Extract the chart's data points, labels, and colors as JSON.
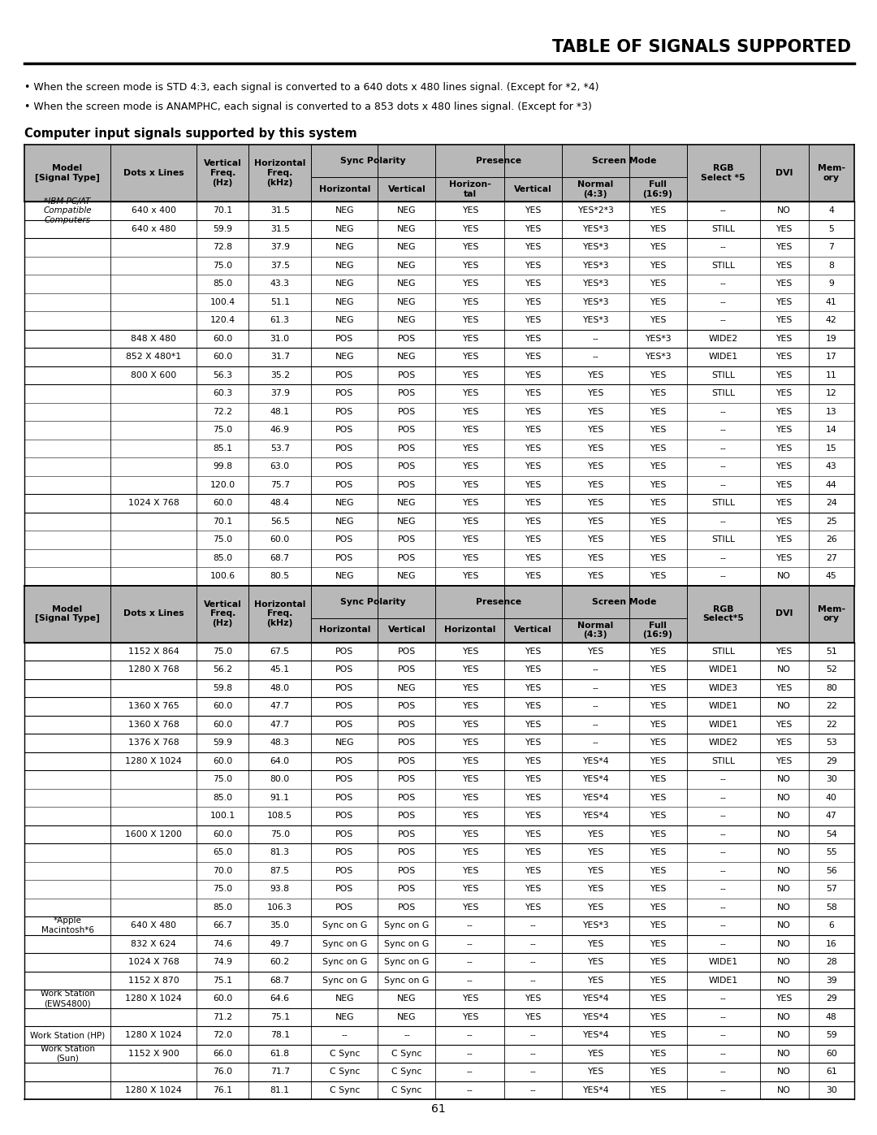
{
  "title": "TABLE OF SIGNALS SUPPORTED",
  "bullet1": "• When the screen mode is STD 4:3, each signal is converted to a 640 dots x 480 lines signal. (Except for *2, *4)",
  "bullet2": "• When the screen mode is ANAMPHC, each signal is converted to a 853 dots x 480 lines signal. (Except for *3)",
  "subtitle": "Computer input signals supported by this system",
  "header_bg": "#b8b8b8",
  "data_section1": [
    [
      "*IBM PC/AT\nCompatible\nComputers",
      "640 x 400",
      "70.1",
      "31.5",
      "NEG",
      "NEG",
      "YES",
      "YES",
      "YES*2*3",
      "YES",
      "--",
      "NO",
      "4"
    ],
    [
      "",
      "640 x 480",
      "59.9",
      "31.5",
      "NEG",
      "NEG",
      "YES",
      "YES",
      "YES*3",
      "YES",
      "STILL",
      "YES",
      "5"
    ],
    [
      "",
      "",
      "72.8",
      "37.9",
      "NEG",
      "NEG",
      "YES",
      "YES",
      "YES*3",
      "YES",
      "--",
      "YES",
      "7"
    ],
    [
      "",
      "",
      "75.0",
      "37.5",
      "NEG",
      "NEG",
      "YES",
      "YES",
      "YES*3",
      "YES",
      "STILL",
      "YES",
      "8"
    ],
    [
      "",
      "",
      "85.0",
      "43.3",
      "NEG",
      "NEG",
      "YES",
      "YES",
      "YES*3",
      "YES",
      "--",
      "YES",
      "9"
    ],
    [
      "",
      "",
      "100.4",
      "51.1",
      "NEG",
      "NEG",
      "YES",
      "YES",
      "YES*3",
      "YES",
      "--",
      "YES",
      "41"
    ],
    [
      "",
      "",
      "120.4",
      "61.3",
      "NEG",
      "NEG",
      "YES",
      "YES",
      "YES*3",
      "YES",
      "--",
      "YES",
      "42"
    ],
    [
      "",
      "848 X 480",
      "60.0",
      "31.0",
      "POS",
      "POS",
      "YES",
      "YES",
      "--",
      "YES*3",
      "WIDE2",
      "YES",
      "19"
    ],
    [
      "",
      "852 X 480*1",
      "60.0",
      "31.7",
      "NEG",
      "NEG",
      "YES",
      "YES",
      "--",
      "YES*3",
      "WIDE1",
      "YES",
      "17"
    ],
    [
      "",
      "800 X 600",
      "56.3",
      "35.2",
      "POS",
      "POS",
      "YES",
      "YES",
      "YES",
      "YES",
      "STILL",
      "YES",
      "11"
    ],
    [
      "",
      "",
      "60.3",
      "37.9",
      "POS",
      "POS",
      "YES",
      "YES",
      "YES",
      "YES",
      "STILL",
      "YES",
      "12"
    ],
    [
      "",
      "",
      "72.2",
      "48.1",
      "POS",
      "POS",
      "YES",
      "YES",
      "YES",
      "YES",
      "--",
      "YES",
      "13"
    ],
    [
      "",
      "",
      "75.0",
      "46.9",
      "POS",
      "POS",
      "YES",
      "YES",
      "YES",
      "YES",
      "--",
      "YES",
      "14"
    ],
    [
      "",
      "",
      "85.1",
      "53.7",
      "POS",
      "POS",
      "YES",
      "YES",
      "YES",
      "YES",
      "--",
      "YES",
      "15"
    ],
    [
      "",
      "",
      "99.8",
      "63.0",
      "POS",
      "POS",
      "YES",
      "YES",
      "YES",
      "YES",
      "--",
      "YES",
      "43"
    ],
    [
      "",
      "",
      "120.0",
      "75.7",
      "POS",
      "POS",
      "YES",
      "YES",
      "YES",
      "YES",
      "--",
      "YES",
      "44"
    ],
    [
      "",
      "1024 X 768",
      "60.0",
      "48.4",
      "NEG",
      "NEG",
      "YES",
      "YES",
      "YES",
      "YES",
      "STILL",
      "YES",
      "24"
    ],
    [
      "",
      "",
      "70.1",
      "56.5",
      "NEG",
      "NEG",
      "YES",
      "YES",
      "YES",
      "YES",
      "--",
      "YES",
      "25"
    ],
    [
      "",
      "",
      "75.0",
      "60.0",
      "POS",
      "POS",
      "YES",
      "YES",
      "YES",
      "YES",
      "STILL",
      "YES",
      "26"
    ],
    [
      "",
      "",
      "85.0",
      "68.7",
      "POS",
      "POS",
      "YES",
      "YES",
      "YES",
      "YES",
      "--",
      "YES",
      "27"
    ],
    [
      "",
      "",
      "100.6",
      "80.5",
      "NEG",
      "NEG",
      "YES",
      "YES",
      "YES",
      "YES",
      "--",
      "NO",
      "45"
    ]
  ],
  "data_section2": [
    [
      "",
      "1152 X 864",
      "75.0",
      "67.5",
      "POS",
      "POS",
      "YES",
      "YES",
      "YES",
      "YES",
      "STILL",
      "YES",
      "51"
    ],
    [
      "",
      "1280 X 768",
      "56.2",
      "45.1",
      "POS",
      "POS",
      "YES",
      "YES",
      "--",
      "YES",
      "WIDE1",
      "NO",
      "52"
    ],
    [
      "",
      "",
      "59.8",
      "48.0",
      "POS",
      "NEG",
      "YES",
      "YES",
      "--",
      "YES",
      "WIDE3",
      "YES",
      "80"
    ],
    [
      "",
      "1360 X 765",
      "60.0",
      "47.7",
      "POS",
      "POS",
      "YES",
      "YES",
      "--",
      "YES",
      "WIDE1",
      "NO",
      "22"
    ],
    [
      "",
      "1360 X 768",
      "60.0",
      "47.7",
      "POS",
      "POS",
      "YES",
      "YES",
      "--",
      "YES",
      "WIDE1",
      "YES",
      "22"
    ],
    [
      "",
      "1376 X 768",
      "59.9",
      "48.3",
      "NEG",
      "POS",
      "YES",
      "YES",
      "--",
      "YES",
      "WIDE2",
      "YES",
      "53"
    ],
    [
      "",
      "1280 X 1024",
      "60.0",
      "64.0",
      "POS",
      "POS",
      "YES",
      "YES",
      "YES*4",
      "YES",
      "STILL",
      "YES",
      "29"
    ],
    [
      "",
      "",
      "75.0",
      "80.0",
      "POS",
      "POS",
      "YES",
      "YES",
      "YES*4",
      "YES",
      "--",
      "NO",
      "30"
    ],
    [
      "",
      "",
      "85.0",
      "91.1",
      "POS",
      "POS",
      "YES",
      "YES",
      "YES*4",
      "YES",
      "--",
      "NO",
      "40"
    ],
    [
      "",
      "",
      "100.1",
      "108.5",
      "POS",
      "POS",
      "YES",
      "YES",
      "YES*4",
      "YES",
      "--",
      "NO",
      "47"
    ],
    [
      "",
      "1600 X 1200",
      "60.0",
      "75.0",
      "POS",
      "POS",
      "YES",
      "YES",
      "YES",
      "YES",
      "--",
      "NO",
      "54"
    ],
    [
      "",
      "",
      "65.0",
      "81.3",
      "POS",
      "POS",
      "YES",
      "YES",
      "YES",
      "YES",
      "--",
      "NO",
      "55"
    ],
    [
      "",
      "",
      "70.0",
      "87.5",
      "POS",
      "POS",
      "YES",
      "YES",
      "YES",
      "YES",
      "--",
      "NO",
      "56"
    ],
    [
      "",
      "",
      "75.0",
      "93.8",
      "POS",
      "POS",
      "YES",
      "YES",
      "YES",
      "YES",
      "--",
      "NO",
      "57"
    ],
    [
      "",
      "",
      "85.0",
      "106.3",
      "POS",
      "POS",
      "YES",
      "YES",
      "YES",
      "YES",
      "--",
      "NO",
      "58"
    ],
    [
      "*Apple\nMacintosh*6",
      "640 X 480",
      "66.7",
      "35.0",
      "Sync on G",
      "Sync on G",
      "--",
      "--",
      "YES*3",
      "YES",
      "--",
      "NO",
      "6"
    ],
    [
      "",
      "832 X 624",
      "74.6",
      "49.7",
      "Sync on G",
      "Sync on G",
      "--",
      "--",
      "YES",
      "YES",
      "--",
      "NO",
      "16"
    ],
    [
      "",
      "1024 X 768",
      "74.9",
      "60.2",
      "Sync on G",
      "Sync on G",
      "--",
      "--",
      "YES",
      "YES",
      "WIDE1",
      "NO",
      "28"
    ],
    [
      "",
      "1152 X 870",
      "75.1",
      "68.7",
      "Sync on G",
      "Sync on G",
      "--",
      "--",
      "YES",
      "YES",
      "WIDE1",
      "NO",
      "39"
    ],
    [
      "Work Station\n(EWS4800)",
      "1280 X 1024",
      "60.0",
      "64.6",
      "NEG",
      "NEG",
      "YES",
      "YES",
      "YES*4",
      "YES",
      "--",
      "YES",
      "29"
    ],
    [
      "",
      "",
      "71.2",
      "75.1",
      "NEG",
      "NEG",
      "YES",
      "YES",
      "YES*4",
      "YES",
      "--",
      "NO",
      "48"
    ],
    [
      "Work Station (HP)",
      "1280 X 1024",
      "72.0",
      "78.1",
      "--",
      "--",
      "--",
      "--",
      "YES*4",
      "YES",
      "--",
      "NO",
      "59"
    ],
    [
      "Work Station\n(Sun)",
      "1152 X 900",
      "66.0",
      "61.8",
      "C Sync",
      "C Sync",
      "--",
      "--",
      "YES",
      "YES",
      "--",
      "NO",
      "60"
    ],
    [
      "",
      "",
      "76.0",
      "71.7",
      "C Sync",
      "C Sync",
      "--",
      "--",
      "YES",
      "YES",
      "--",
      "NO",
      "61"
    ],
    [
      "",
      "1280 X 1024",
      "76.1",
      "81.1",
      "C Sync",
      "C Sync",
      "--",
      "--",
      "YES*4",
      "YES",
      "--",
      "NO",
      "30"
    ]
  ],
  "page_number": "61"
}
